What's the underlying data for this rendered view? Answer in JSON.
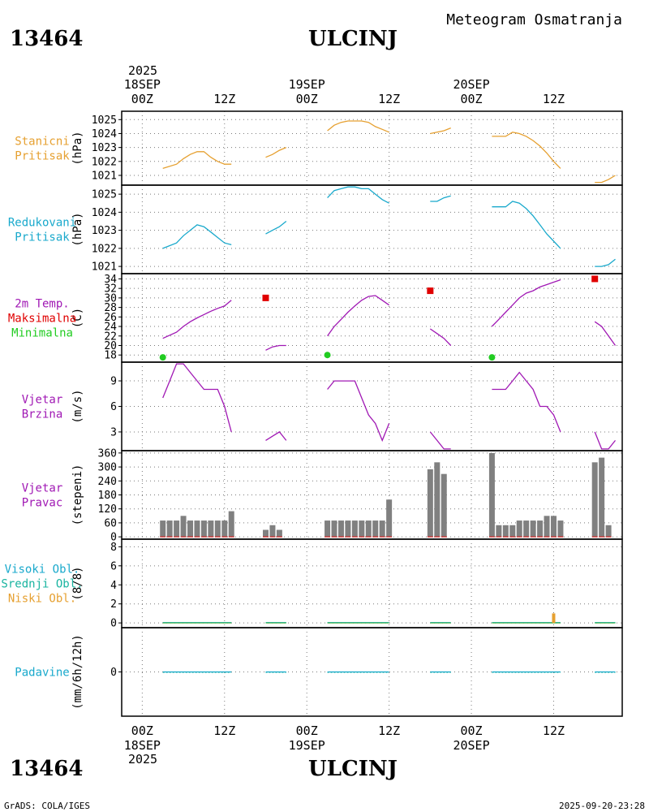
{
  "header": {
    "station_id": "13464",
    "station_name": "ULCINJ",
    "product": "Meteogram Osmatranja"
  },
  "footer": {
    "credit": "GrADS: COLA/IGES",
    "timestamp": "2025-09-20-23:28"
  },
  "time_axis": {
    "top_year": "2025",
    "bottom_year": "2025",
    "date_labels": [
      "18SEP",
      "19SEP",
      "20SEP"
    ],
    "hour_labels": [
      "00Z",
      "12Z",
      "00Z",
      "12Z",
      "00Z",
      "12Z"
    ],
    "hour_positions": [
      0,
      12,
      24,
      36,
      48,
      60
    ],
    "date_positions": [
      0,
      24,
      48
    ],
    "range_hours": [
      -3,
      70
    ]
  },
  "colors": {
    "orange": "#E6A030",
    "cyan": "#19A9CC",
    "purple": "#A018B4",
    "red": "#E00000",
    "green": "#22CC22",
    "gray": "#808080",
    "teal": "#19B4A0"
  },
  "chart_data": [
    {
      "id": "stanicni",
      "type": "line",
      "labels": [
        {
          "text": "Stanicni",
          "color": "#E6A030"
        },
        {
          "text": "Pritisak",
          "color": "#E6A030"
        }
      ],
      "ylabel": "(hPa)",
      "ylim": [
        1020.3,
        1025.6
      ],
      "yticks": [
        1021,
        1022,
        1023,
        1024,
        1025
      ],
      "segments": [
        {
          "color": "#E6A030",
          "x": [
            3,
            5,
            6,
            7,
            8,
            9,
            10,
            11,
            12,
            13
          ],
          "y": [
            1021.5,
            1021.8,
            1022.2,
            1022.5,
            1022.7,
            1022.7,
            1022.3,
            1022.0,
            1021.8,
            1021.8
          ]
        },
        {
          "color": "#E6A030",
          "x": [
            18,
            19,
            20,
            21
          ],
          "y": [
            1022.3,
            1022.5,
            1022.8,
            1023.0
          ]
        },
        {
          "color": "#E6A030",
          "x": [
            27,
            28,
            29,
            30,
            31,
            32,
            33,
            34,
            35,
            36
          ],
          "y": [
            1024.2,
            1024.6,
            1024.8,
            1024.9,
            1024.9,
            1024.9,
            1024.8,
            1024.5,
            1024.3,
            1024.1
          ]
        },
        {
          "color": "#E6A030",
          "x": [
            42,
            43,
            44,
            45
          ],
          "y": [
            1024.0,
            1024.1,
            1024.2,
            1024.4
          ]
        },
        {
          "color": "#E6A030",
          "x": [
            51,
            52,
            53,
            54,
            55,
            56,
            57,
            58,
            59,
            60,
            61
          ],
          "y": [
            1023.8,
            1023.8,
            1023.8,
            1024.1,
            1024.0,
            1023.8,
            1023.5,
            1023.1,
            1022.6,
            1022.0,
            1021.5
          ]
        },
        {
          "color": "#E6A030",
          "x": [
            66,
            67,
            68,
            69
          ],
          "y": [
            1020.5,
            1020.5,
            1020.7,
            1021.0
          ]
        }
      ]
    },
    {
      "id": "redukovani",
      "type": "line",
      "labels": [
        {
          "text": "Redukovani",
          "color": "#19A9CC"
        },
        {
          "text": "Pritisak",
          "color": "#19A9CC"
        }
      ],
      "ylabel": "(hPa)",
      "ylim": [
        1020.6,
        1025.5
      ],
      "yticks": [
        1021,
        1022,
        1023,
        1024,
        1025
      ],
      "segments": [
        {
          "color": "#19A9CC",
          "x": [
            3,
            5,
            6,
            7,
            8,
            9,
            10,
            11,
            12,
            13
          ],
          "y": [
            1022.0,
            1022.3,
            1022.7,
            1023.0,
            1023.3,
            1023.2,
            1022.9,
            1022.6,
            1022.3,
            1022.2
          ]
        },
        {
          "color": "#19A9CC",
          "x": [
            18,
            19,
            20,
            21
          ],
          "y": [
            1022.8,
            1023.0,
            1023.2,
            1023.5
          ]
        },
        {
          "color": "#19A9CC",
          "x": [
            27,
            28,
            29,
            30,
            31,
            32,
            33,
            34,
            35,
            36
          ],
          "y": [
            1024.8,
            1025.2,
            1025.3,
            1025.4,
            1025.4,
            1025.3,
            1025.3,
            1025.0,
            1024.7,
            1024.5
          ]
        },
        {
          "color": "#19A9CC",
          "x": [
            42,
            43,
            44,
            45
          ],
          "y": [
            1024.6,
            1024.6,
            1024.8,
            1024.9
          ]
        },
        {
          "color": "#19A9CC",
          "x": [
            51,
            52,
            53,
            54,
            55,
            56,
            57,
            58,
            59,
            60,
            61
          ],
          "y": [
            1024.3,
            1024.3,
            1024.3,
            1024.6,
            1024.5,
            1024.2,
            1023.8,
            1023.3,
            1022.8,
            1022.4,
            1022.0
          ]
        },
        {
          "color": "#19A9CC",
          "x": [
            66,
            67,
            68,
            69
          ],
          "y": [
            1021.0,
            1021.0,
            1021.1,
            1021.4
          ]
        }
      ]
    },
    {
      "id": "temp",
      "type": "line",
      "labels": [
        {
          "text": "2m Temp.",
          "color": "#A018B4"
        },
        {
          "text": "Maksimalna",
          "color": "#E00000"
        },
        {
          "text": "Minimalna",
          "color": "#22CC22"
        }
      ],
      "ylabel": "(C)",
      "ylim": [
        16.5,
        35.1
      ],
      "yticks": [
        18,
        20,
        22,
        24,
        26,
        28,
        30,
        32,
        34
      ],
      "segments": [
        {
          "color": "#A018B4",
          "x": [
            3,
            5,
            6,
            7,
            8,
            9,
            10,
            11,
            12,
            13
          ],
          "y": [
            21.5,
            22.8,
            24.0,
            25.0,
            25.8,
            26.5,
            27.2,
            27.8,
            28.3,
            29.5
          ]
        },
        {
          "color": "#A018B4",
          "x": [
            18,
            19,
            20,
            21
          ],
          "y": [
            19.0,
            19.7,
            20.0,
            20.0
          ]
        },
        {
          "color": "#A018B4",
          "x": [
            27,
            28,
            29,
            30,
            31,
            32,
            33,
            34,
            35,
            36
          ],
          "y": [
            22.0,
            24.0,
            25.5,
            27.0,
            28.3,
            29.5,
            30.3,
            30.5,
            29.5,
            28.5
          ]
        },
        {
          "color": "#A018B4",
          "x": [
            42,
            43,
            44,
            45
          ],
          "y": [
            23.5,
            22.5,
            21.5,
            20.0
          ]
        },
        {
          "color": "#A018B4",
          "x": [
            51,
            52,
            53,
            54,
            55,
            56,
            57,
            58,
            59,
            60,
            61
          ],
          "y": [
            24.0,
            25.5,
            27.0,
            28.5,
            30.0,
            31.0,
            31.5,
            32.3,
            32.8,
            33.3,
            33.8
          ]
        },
        {
          "color": "#A018B4",
          "x": [
            66,
            67,
            68,
            69
          ],
          "y": [
            25.0,
            24.0,
            22.0,
            20.0
          ]
        }
      ],
      "max_points": {
        "x": [
          18,
          42,
          66
        ],
        "y": [
          30,
          31.5,
          34
        ],
        "color": "#E00000"
      },
      "min_points": {
        "x": [
          3,
          27,
          51
        ],
        "y": [
          17.5,
          18.0,
          17.5
        ],
        "color": "#22CC22"
      }
    },
    {
      "id": "brzina",
      "type": "line",
      "labels": [
        {
          "text": "Vjetar",
          "color": "#A018B4"
        },
        {
          "text": "Brzina",
          "color": "#A018B4"
        }
      ],
      "ylabel": "(m/s)",
      "ylim": [
        0.8,
        11.2
      ],
      "yticks": [
        3,
        6,
        9
      ],
      "segments": [
        {
          "color": "#A018B4",
          "x": [
            3,
            4,
            5,
            6,
            7,
            8,
            9,
            10,
            11,
            12,
            13
          ],
          "y": [
            7.0,
            9.0,
            11.0,
            11.0,
            10.0,
            9.0,
            8.0,
            8.0,
            8.0,
            6.0,
            3.0
          ]
        },
        {
          "color": "#A018B4",
          "x": [
            18,
            19,
            20,
            21
          ],
          "y": [
            2.0,
            2.5,
            3.0,
            2.0
          ]
        },
        {
          "color": "#A018B4",
          "x": [
            27,
            28,
            29,
            30,
            31,
            32,
            33,
            34,
            35,
            36
          ],
          "y": [
            8.0,
            9.0,
            9.0,
            9.0,
            9.0,
            7.0,
            5.0,
            4.0,
            2.0,
            4.0
          ]
        },
        {
          "color": "#A018B4",
          "x": [
            42,
            43,
            44,
            45
          ],
          "y": [
            3.0,
            2.0,
            1.0,
            1.0
          ]
        },
        {
          "color": "#A018B4",
          "x": [
            51,
            52,
            53,
            54,
            55,
            56,
            57,
            58,
            59,
            60,
            61
          ],
          "y": [
            8.0,
            8.0,
            8.0,
            9.0,
            10.0,
            9.0,
            8.0,
            6.0,
            6.0,
            5.0,
            3.0
          ]
        },
        {
          "color": "#A018B4",
          "x": [
            66,
            67,
            68,
            69
          ],
          "y": [
            3.0,
            1.0,
            1.0,
            2.0
          ]
        }
      ]
    },
    {
      "id": "pravac",
      "type": "bar",
      "labels": [
        {
          "text": "Vjetar",
          "color": "#A018B4"
        },
        {
          "text": "Pravac",
          "color": "#A018B4"
        }
      ],
      "ylabel": "(stepeni)",
      "ylim": [
        -10,
        370
      ],
      "yticks": [
        0,
        60,
        120,
        180,
        240,
        300,
        360
      ],
      "bar_color": "#808080",
      "bars": {
        "x": [
          3,
          4,
          5,
          6,
          7,
          8,
          9,
          10,
          11,
          12,
          13,
          18,
          19,
          20,
          27,
          28,
          29,
          30,
          31,
          32,
          33,
          34,
          35,
          36,
          42,
          43,
          44,
          51,
          52,
          53,
          54,
          55,
          56,
          57,
          58,
          59,
          60,
          61,
          66,
          67,
          68
        ],
        "y": [
          70,
          70,
          70,
          90,
          70,
          70,
          70,
          70,
          70,
          70,
          110,
          30,
          50,
          30,
          70,
          70,
          70,
          70,
          70,
          70,
          70,
          70,
          70,
          160,
          290,
          320,
          270,
          360,
          50,
          50,
          50,
          70,
          70,
          70,
          70,
          90,
          90,
          70,
          320,
          340,
          50
        ]
      }
    },
    {
      "id": "oblaci",
      "type": "bar",
      "labels": [
        {
          "text": "Visoki Obl.",
          "color": "#19A9CC"
        },
        {
          "text": "Srednji Obl.",
          "color": "#19B4A0"
        },
        {
          "text": "Niski Obl.",
          "color": "#E6A030"
        }
      ],
      "ylabel": "(8/8)",
      "ylim": [
        -0.5,
        8.8
      ],
      "yticks": [
        0,
        2,
        4,
        6,
        8
      ],
      "bars": {
        "x": [
          60
        ],
        "y": [
          1
        ],
        "color": "#E6A030"
      },
      "baseline_segments": [
        [
          3,
          13
        ],
        [
          18,
          21
        ],
        [
          27,
          36
        ],
        [
          42,
          45
        ],
        [
          51,
          61
        ],
        [
          66,
          69
        ]
      ]
    },
    {
      "id": "padavine",
      "type": "bar",
      "labels": [
        {
          "text": "Padavine",
          "color": "#19A9CC"
        }
      ],
      "ylabel": "(mm/6h/12h)",
      "ylim": [
        -5,
        5
      ],
      "yticks": [
        0
      ],
      "baseline_segments": [
        [
          3,
          13
        ],
        [
          18,
          21
        ],
        [
          27,
          36
        ],
        [
          42,
          45
        ],
        [
          51,
          61
        ],
        [
          66,
          69
        ]
      ]
    }
  ]
}
